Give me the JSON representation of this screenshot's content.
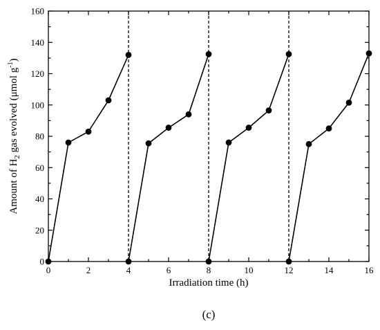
{
  "chart_data": {
    "type": "line",
    "x_label": "Irradiation time (h)",
    "y_label": {
      "prefix": "Amount of H",
      "subscript": "2",
      "middle": " gas evolved (μmol g",
      "superscript": "-1",
      "suffix": ")"
    },
    "caption": "(c)",
    "xlim": [
      0,
      16
    ],
    "ylim": [
      0,
      160
    ],
    "x_ticks": [
      0,
      2,
      4,
      6,
      8,
      10,
      12,
      14,
      16
    ],
    "y_ticks": [
      0,
      20,
      40,
      60,
      80,
      100,
      120,
      140,
      160
    ],
    "grid": false,
    "legend": "none",
    "series": [
      {
        "x": [
          0,
          1,
          2,
          3,
          4
        ],
        "y": [
          0,
          76,
          83,
          103,
          132
        ]
      },
      {
        "x": [
          4,
          5,
          6,
          7,
          8
        ],
        "y": [
          0,
          75.5,
          85.5,
          94,
          132.5
        ]
      },
      {
        "x": [
          8,
          9,
          10,
          11,
          12
        ],
        "y": [
          0,
          76,
          85.5,
          96.5,
          132.5
        ]
      },
      {
        "x": [
          12,
          13,
          14,
          15,
          16
        ],
        "y": [
          0,
          75,
          85,
          101.5,
          133
        ]
      }
    ],
    "cycle_dividers_x": [
      4,
      8,
      12
    ],
    "colors": {
      "line": "#000000",
      "marker": "#000000",
      "axis": "#000000",
      "divider": "#000000"
    }
  }
}
